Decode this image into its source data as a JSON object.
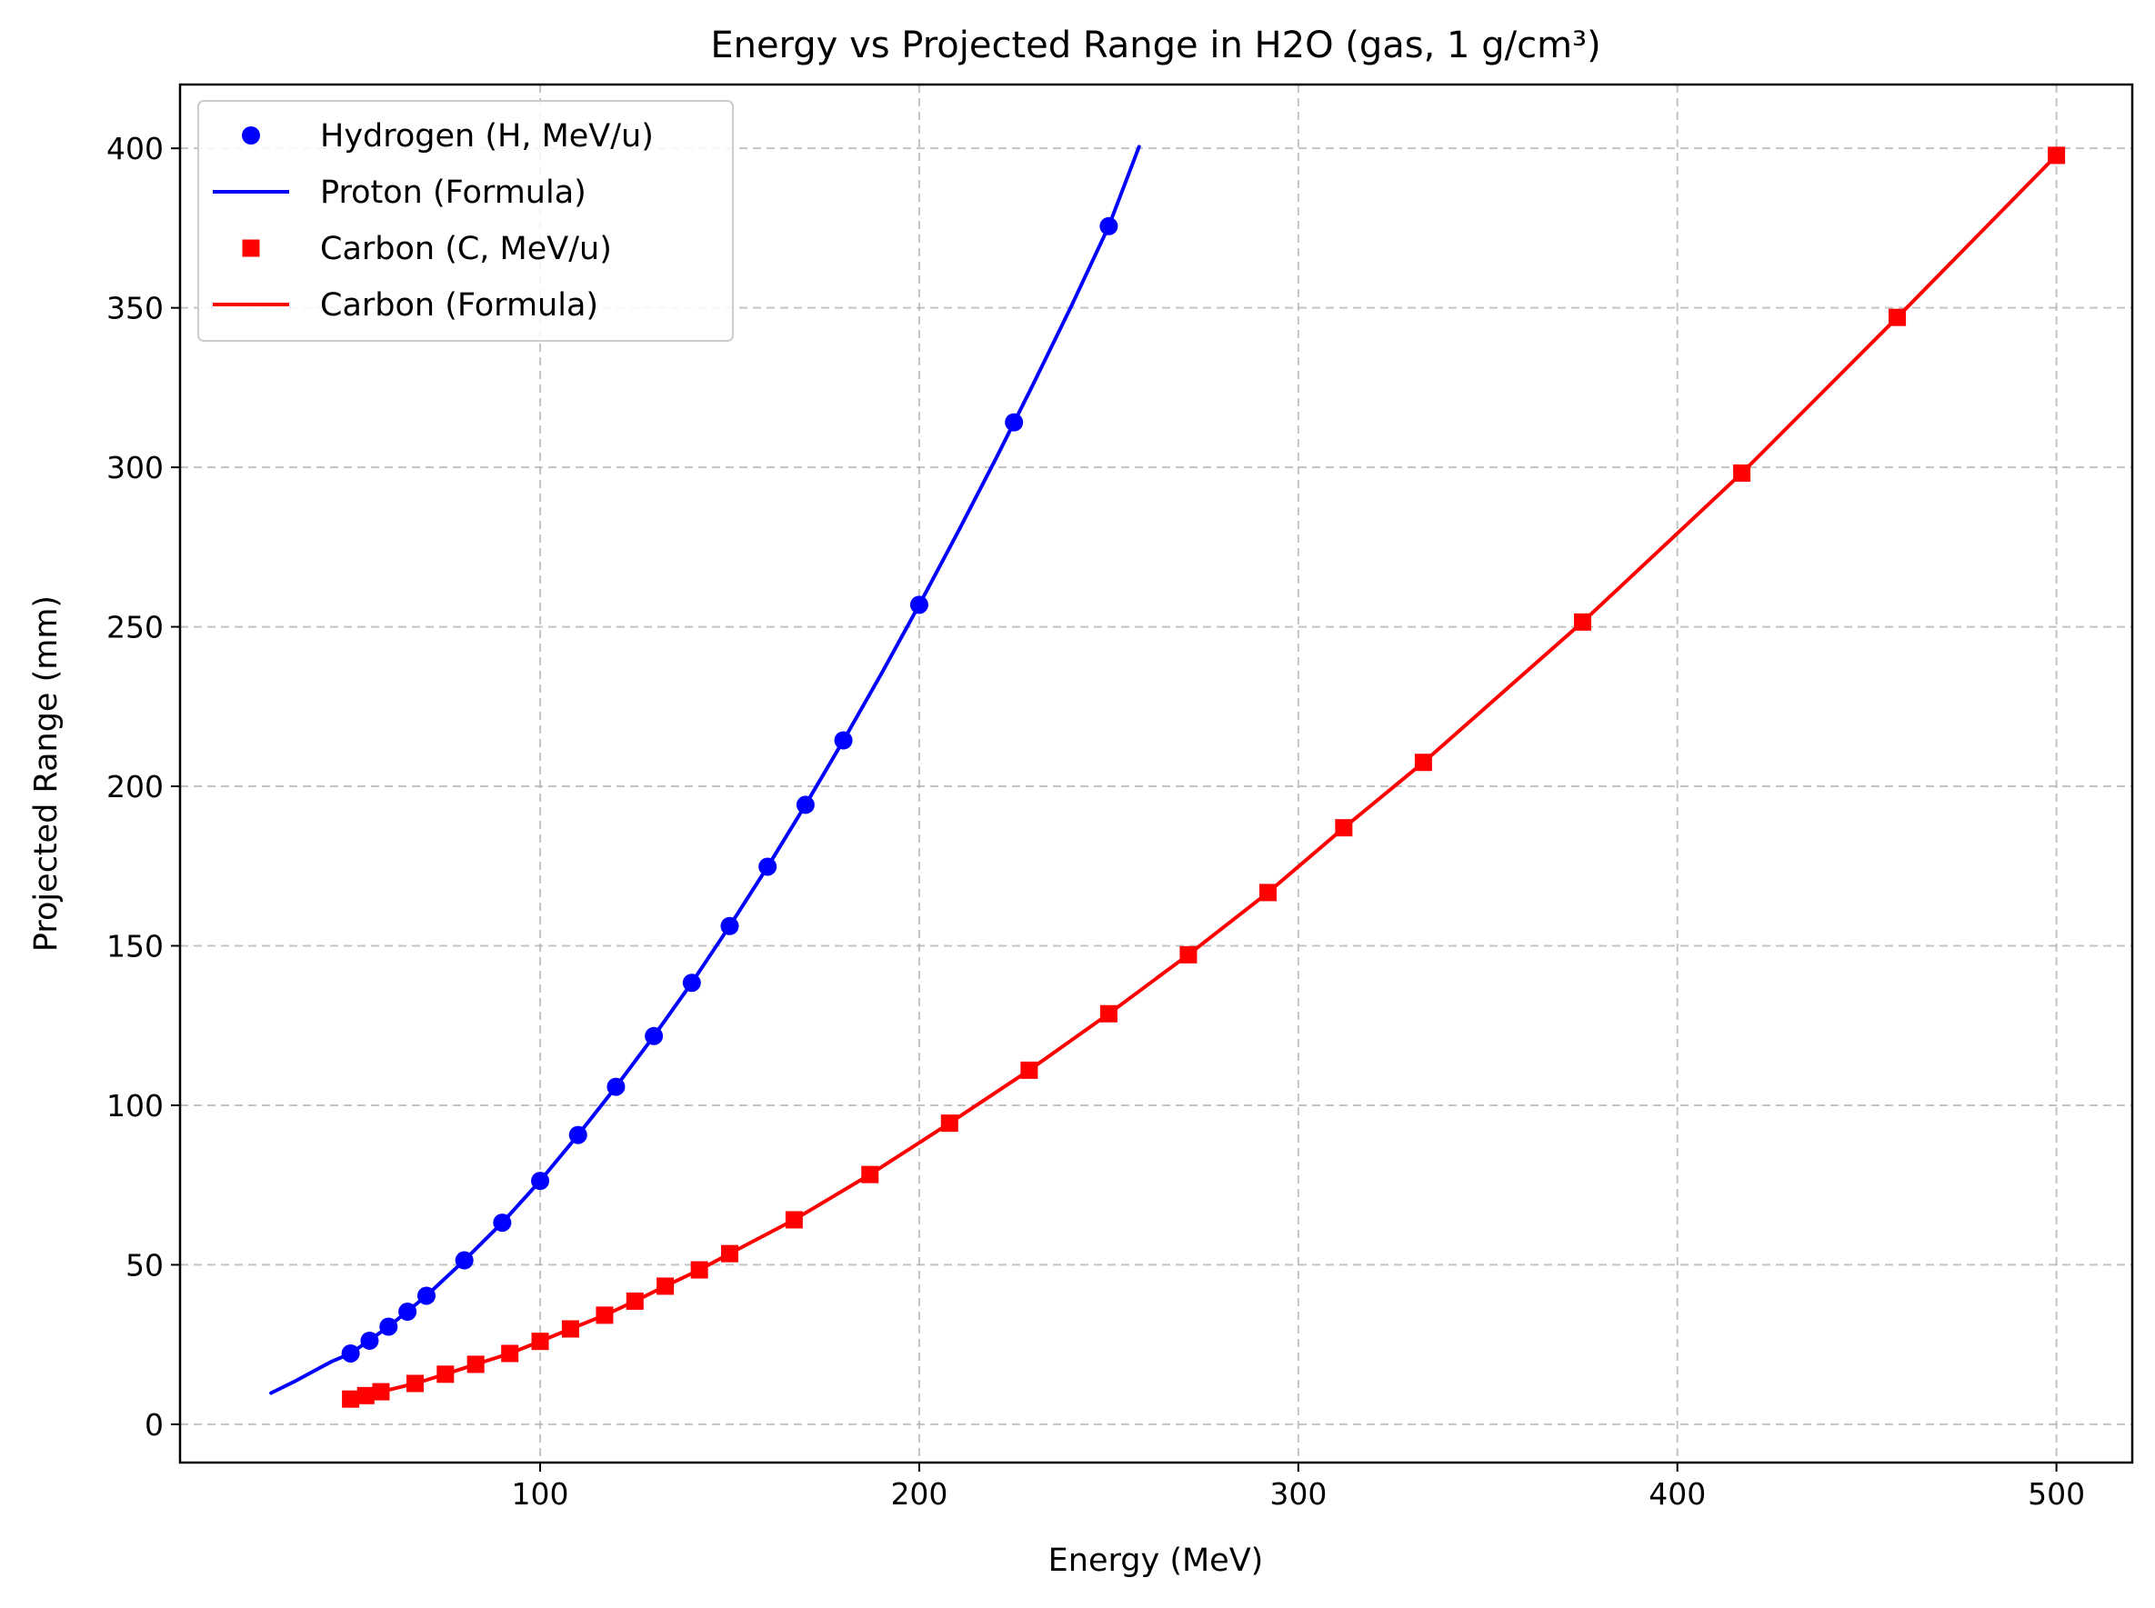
{
  "chart_data": {
    "type": "line",
    "title": "Energy vs Projected Range in H2O (gas, 1 g/cm³)",
    "xlabel": "Energy (MeV)",
    "ylabel": "Projected Range (mm)",
    "xlim": [
      5,
      520
    ],
    "ylim": [
      -12,
      420
    ],
    "xticks": [
      100,
      200,
      300,
      400,
      500
    ],
    "yticks": [
      0,
      50,
      100,
      150,
      200,
      250,
      300,
      350,
      400
    ],
    "grid": true,
    "legend_position": "upper-left",
    "colors": {
      "hydrogen": "#0000ff",
      "carbon": "#ff0000"
    },
    "series": [
      {
        "name": "Hydrogen (H, MeV/u)",
        "kind": "markers",
        "marker": "circle",
        "color": "#0000ff",
        "points": [
          [
            50,
            22.2
          ],
          [
            55,
            26.2
          ],
          [
            60,
            30.6
          ],
          [
            65,
            35.3
          ],
          [
            70,
            40.3
          ],
          [
            80,
            51.4
          ],
          [
            90,
            63.2
          ],
          [
            100,
            76.3
          ],
          [
            110,
            90.7
          ],
          [
            120,
            105.8
          ],
          [
            130,
            121.7
          ],
          [
            140,
            138.4
          ],
          [
            150,
            156.2
          ],
          [
            160,
            174.8
          ],
          [
            170,
            194.2
          ],
          [
            180,
            214.4
          ],
          [
            200,
            256.9
          ],
          [
            225,
            314.1
          ],
          [
            250,
            375.6
          ]
        ]
      },
      {
        "name": "Proton (Formula)",
        "kind": "line",
        "color": "#0000ff",
        "points": [
          [
            29,
            9.8
          ],
          [
            35,
            13.3
          ],
          [
            40,
            16.5
          ],
          [
            45,
            19.7
          ],
          [
            50,
            22.2
          ],
          [
            60,
            30.6
          ],
          [
            70,
            40.3
          ],
          [
            80,
            51.4
          ],
          [
            90,
            63.2
          ],
          [
            100,
            76.3
          ],
          [
            110,
            90.7
          ],
          [
            120,
            105.8
          ],
          [
            130,
            121.7
          ],
          [
            140,
            138.4
          ],
          [
            150,
            156.2
          ],
          [
            160,
            174.8
          ],
          [
            170,
            194.2
          ],
          [
            180,
            214.4
          ],
          [
            190,
            235.3
          ],
          [
            200,
            256.9
          ],
          [
            210,
            279.2
          ],
          [
            220,
            302.2
          ],
          [
            230,
            325.9
          ],
          [
            240,
            350.2
          ],
          [
            250,
            375.6
          ],
          [
            258,
            400.5
          ]
        ]
      },
      {
        "name": "Carbon (C, MeV/u)",
        "kind": "markers",
        "marker": "square",
        "color": "#ff0000",
        "points": [
          [
            50,
            7.9
          ],
          [
            54,
            9.0
          ],
          [
            58,
            10.2
          ],
          [
            67,
            12.8
          ],
          [
            75,
            15.7
          ],
          [
            83,
            18.8
          ],
          [
            92,
            22.2
          ],
          [
            100,
            26.0
          ],
          [
            108,
            29.9
          ],
          [
            117,
            34.2
          ],
          [
            125,
            38.6
          ],
          [
            133,
            43.3
          ],
          [
            142,
            48.4
          ],
          [
            150,
            53.5
          ],
          [
            167,
            64.1
          ],
          [
            187,
            78.3
          ],
          [
            208,
            94.4
          ],
          [
            229,
            111.0
          ],
          [
            250,
            128.7
          ],
          [
            271,
            147.2
          ],
          [
            292,
            166.7
          ],
          [
            312,
            187.0
          ],
          [
            333,
            207.5
          ],
          [
            375,
            251.5
          ],
          [
            417,
            298.2
          ],
          [
            458,
            347.0
          ],
          [
            500,
            397.8
          ]
        ]
      },
      {
        "name": "Carbon (Formula)",
        "kind": "line",
        "color": "#ff0000",
        "points": [
          [
            50,
            7.9
          ],
          [
            54,
            9.0
          ],
          [
            58,
            10.2
          ],
          [
            67,
            12.8
          ],
          [
            75,
            15.7
          ],
          [
            83,
            18.8
          ],
          [
            92,
            22.2
          ],
          [
            100,
            26.0
          ],
          [
            108,
            29.9
          ],
          [
            117,
            34.2
          ],
          [
            125,
            38.6
          ],
          [
            133,
            43.3
          ],
          [
            142,
            48.4
          ],
          [
            150,
            53.5
          ],
          [
            167,
            64.1
          ],
          [
            187,
            78.3
          ],
          [
            208,
            94.4
          ],
          [
            229,
            111.0
          ],
          [
            250,
            128.7
          ],
          [
            271,
            147.2
          ],
          [
            292,
            166.7
          ],
          [
            312,
            187.0
          ],
          [
            333,
            207.5
          ],
          [
            375,
            251.5
          ],
          [
            417,
            298.2
          ],
          [
            458,
            347.0
          ],
          [
            500,
            397.8
          ]
        ]
      }
    ]
  }
}
